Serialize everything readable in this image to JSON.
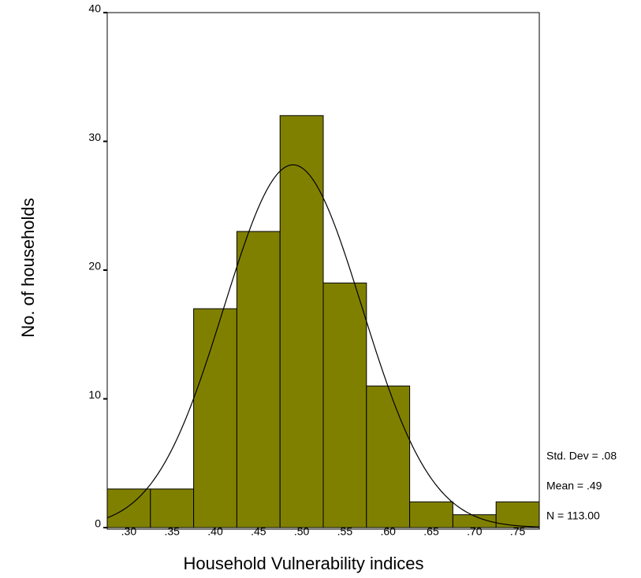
{
  "chart_data": {
    "type": "histogram",
    "x_label": "Household Vulnerability indices",
    "y_label": "No. of households",
    "bins": [
      0.275,
      0.325,
      0.375,
      0.425,
      0.475,
      0.525,
      0.575,
      0.625,
      0.675,
      0.725,
      0.775
    ],
    "values": [
      3,
      3,
      17,
      23,
      32,
      19,
      11,
      2,
      1,
      2
    ],
    "color": "#808000",
    "xlim": [
      0.275,
      0.775
    ],
    "ylim": [
      0,
      40
    ],
    "yticks": [
      0,
      10,
      20,
      30,
      40
    ],
    "xticks": [
      {
        "value": 0.3,
        "label": ".30"
      },
      {
        "value": 0.35,
        "label": ".35"
      },
      {
        "value": 0.4,
        "label": ".40"
      },
      {
        "value": 0.45,
        "label": ".45"
      },
      {
        "value": 0.5,
        "label": ".50"
      },
      {
        "value": 0.55,
        "label": ".55"
      },
      {
        "value": 0.6,
        "label": ".60"
      },
      {
        "value": 0.65,
        "label": ".65"
      },
      {
        "value": 0.7,
        "label": ".70"
      },
      {
        "value": 0.75,
        "label": ".75"
      }
    ],
    "stats": {
      "std_dev": {
        "label": "Std. Dev = .08",
        "value": 0.08
      },
      "mean": {
        "label": "Mean = .49",
        "value": 0.49
      },
      "n": {
        "label": "N = 113.00",
        "value": 113
      }
    }
  }
}
